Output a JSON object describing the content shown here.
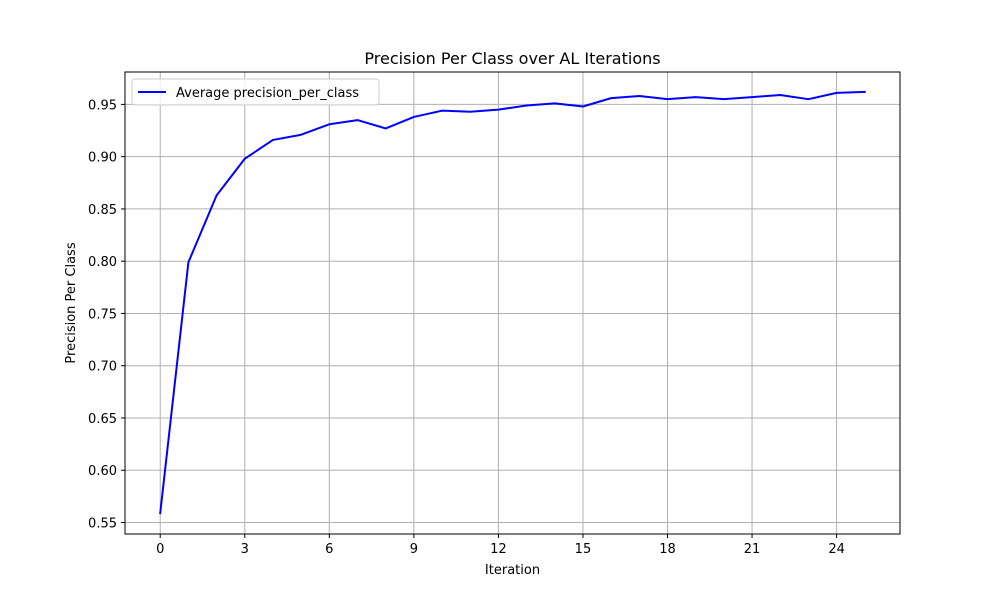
{
  "chart_data": {
    "type": "line",
    "title": "Precision Per Class over AL Iterations",
    "xlabel": "Iteration",
    "ylabel": "Precision Per Class",
    "xlim": [
      -1.25,
      26.25
    ],
    "ylim": [
      0.539,
      0.981
    ],
    "xticks": [
      0,
      3,
      6,
      9,
      12,
      15,
      18,
      21,
      24
    ],
    "yticks": [
      0.55,
      0.6,
      0.65,
      0.7,
      0.75,
      0.8,
      0.85,
      0.9,
      0.95
    ],
    "ytick_labels": [
      "0.55",
      "0.60",
      "0.65",
      "0.70",
      "0.75",
      "0.80",
      "0.85",
      "0.90",
      "0.95"
    ],
    "grid": true,
    "legend_position": "top-left",
    "x": [
      0,
      1,
      2,
      3,
      4,
      5,
      6,
      7,
      8,
      9,
      10,
      11,
      12,
      13,
      14,
      15,
      16,
      17,
      18,
      19,
      20,
      21,
      22,
      23,
      24,
      25
    ],
    "series": [
      {
        "name": "Average precision_per_class",
        "color": "#0000ff",
        "values": [
          0.559,
          0.799,
          0.863,
          0.898,
          0.916,
          0.921,
          0.931,
          0.935,
          0.927,
          0.938,
          0.944,
          0.943,
          0.945,
          0.949,
          0.951,
          0.948,
          0.956,
          0.958,
          0.955,
          0.957,
          0.955,
          0.957,
          0.959,
          0.955,
          0.961,
          0.962
        ]
      }
    ]
  }
}
